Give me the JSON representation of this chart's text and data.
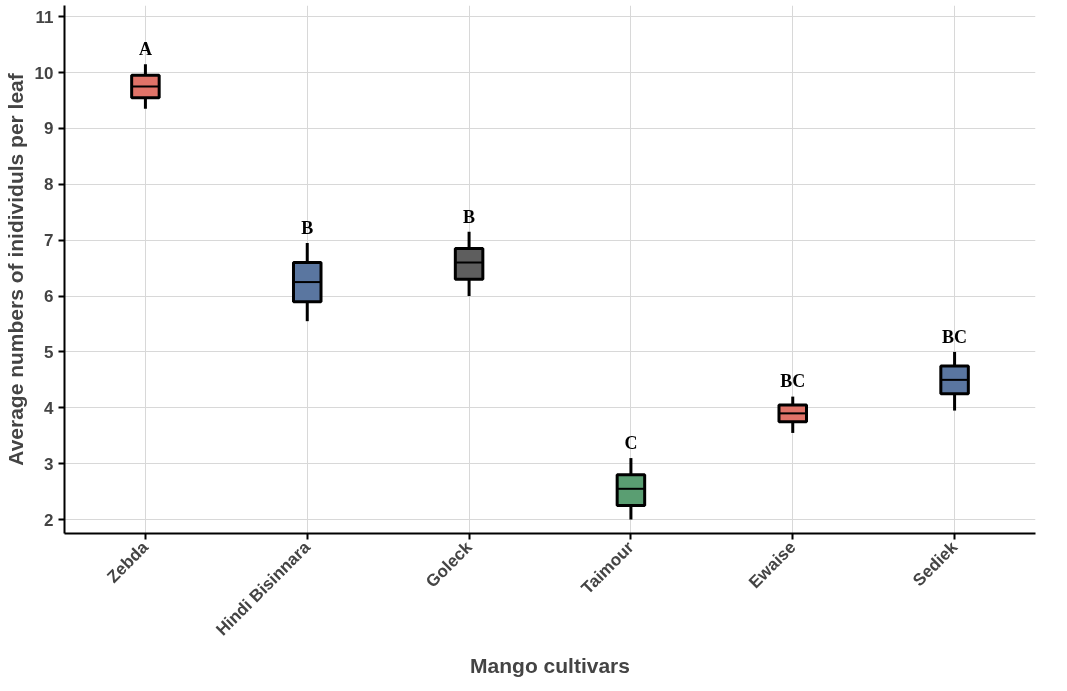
{
  "chart_data": {
    "type": "box",
    "categories": [
      "Zebda",
      "Hindi Bisinnara",
      "Goleck",
      "Taimour",
      "Ewaise",
      "Sediek"
    ],
    "colors": [
      "#e07368",
      "#5a76a0",
      "#5e5e5e",
      "#5a9e72",
      "#e07368",
      "#5a76a0"
    ],
    "boxes": [
      {
        "low": 9.35,
        "q1": 9.55,
        "median": 9.75,
        "q3": 9.95,
        "high": 10.15
      },
      {
        "low": 5.55,
        "q1": 5.9,
        "median": 6.25,
        "q3": 6.6,
        "high": 6.95
      },
      {
        "low": 6.0,
        "q1": 6.3,
        "median": 6.6,
        "q3": 6.85,
        "high": 7.15
      },
      {
        "low": 2.0,
        "q1": 2.25,
        "median": 2.55,
        "q3": 2.8,
        "high": 3.1
      },
      {
        "low": 3.55,
        "q1": 3.75,
        "median": 3.9,
        "q3": 4.05,
        "high": 4.2
      },
      {
        "low": 3.95,
        "q1": 4.25,
        "median": 4.5,
        "q3": 4.75,
        "high": 5.0
      }
    ],
    "ylim": [
      1.75,
      11.2
    ],
    "yticks": [
      2,
      3,
      4,
      5,
      6,
      7,
      8,
      9,
      10,
      11
    ],
    "grid": true,
    "xlabel": "Mango cultivars",
    "ylabel": "Average numbers of inidividuls per leaf",
    "annotations": [
      "A",
      "B",
      "B",
      "C",
      "BC",
      "BC"
    ]
  }
}
